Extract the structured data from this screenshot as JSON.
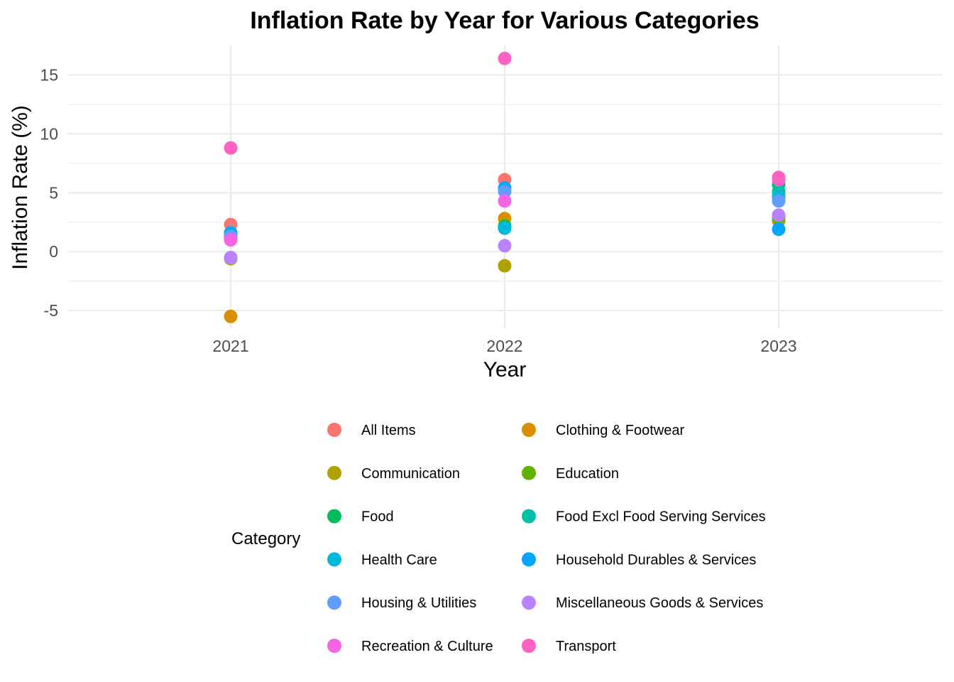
{
  "chart_data": {
    "type": "scatter",
    "title": "Inflation Rate by Year for Various Categories",
    "xlabel": "Year",
    "ylabel": "Inflation Rate (%)",
    "x": [
      "2021",
      "2022",
      "2023"
    ],
    "ylim": [
      -6.5,
      17.5
    ],
    "yticks": [
      -5,
      0,
      5,
      10,
      15
    ],
    "ytick_labels": [
      "-5",
      "0",
      "5",
      "10",
      "15"
    ],
    "grid": true,
    "legend": {
      "title": "Category",
      "placement": "bottom",
      "columns": 2
    },
    "series": [
      {
        "name": "All Items",
        "color": "#F8766D",
        "values": [
          2.3,
          6.1,
          4.8
        ]
      },
      {
        "name": "Clothing & Footwear",
        "color": "#DB8E00",
        "values": [
          -5.5,
          2.8,
          2.7
        ]
      },
      {
        "name": "Communication",
        "color": "#AEA200",
        "values": [
          -0.6,
          -1.2,
          2.6
        ]
      },
      {
        "name": "Education",
        "color": "#64B200",
        "values": [
          1.2,
          2.2,
          2.9
        ]
      },
      {
        "name": "Food",
        "color": "#00BD5C",
        "values": [
          1.4,
          2.1,
          5.7
        ]
      },
      {
        "name": "Food Excl Food Serving Services",
        "color": "#00C1A7",
        "values": [
          1.3,
          2.0,
          5.1
        ]
      },
      {
        "name": "Health Care",
        "color": "#00BADE",
        "values": [
          1.6,
          2.0,
          4.6
        ]
      },
      {
        "name": "Household Durables & Services",
        "color": "#00A6FF",
        "values": [
          1.5,
          5.4,
          1.9
        ]
      },
      {
        "name": "Housing & Utilities",
        "color": "#619CFF",
        "values": [
          1.3,
          5.1,
          4.3
        ]
      },
      {
        "name": "Miscellaneous Goods & Services",
        "color": "#B983FF",
        "values": [
          -0.5,
          0.5,
          3.1
        ]
      },
      {
        "name": "Recreation & Culture",
        "color": "#F564E3",
        "values": [
          1.0,
          4.3,
          6.1
        ]
      },
      {
        "name": "Transport",
        "color": "#FF61C3",
        "values": [
          8.8,
          16.4,
          6.3
        ]
      }
    ]
  }
}
